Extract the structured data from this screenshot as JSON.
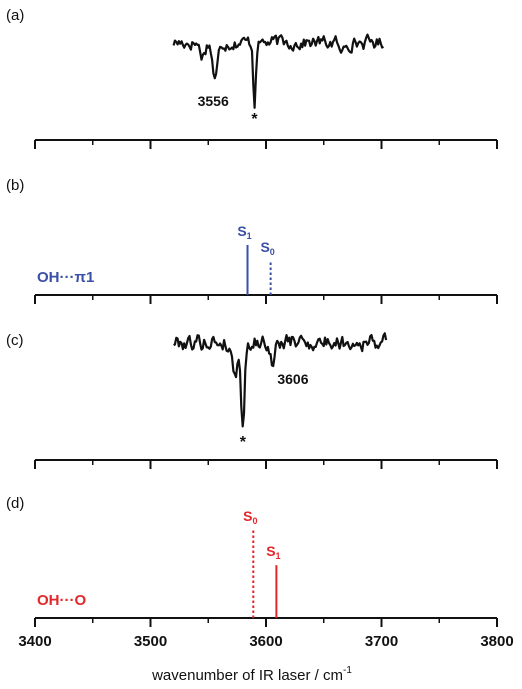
{
  "chart_data": {
    "type": "line",
    "xlabel": "wavenumber of IR laser / cm",
    "xlabel_superscript": "-1",
    "xlim": [
      3400,
      3800
    ],
    "xticks": [
      3400,
      3500,
      3600,
      3700,
      3800
    ],
    "xticks_minor": [
      3450,
      3550,
      3650,
      3750
    ],
    "colors": {
      "trace": "#111111",
      "blue": "#3a4fa6",
      "red": "#e3262a"
    },
    "panels": [
      {
        "label": "(a)",
        "kind": "spectrum",
        "x_range": [
          3520,
          3702
        ],
        "baseline_y": 0,
        "y_range": [
          -8,
          3
        ],
        "dips": [
          {
            "center": 3556,
            "depth": 4.5,
            "width": 3
          },
          {
            "center": 3590,
            "depth": 7.5,
            "width": 1.4
          },
          {
            "center": 3545,
            "depth": 1.6,
            "width": 3
          },
          {
            "center": 3665,
            "depth": 1.8,
            "width": 2
          }
        ],
        "annotations": [
          {
            "text": "3556",
            "x": 3556
          },
          {
            "text": "*",
            "x": 3590
          }
        ]
      },
      {
        "label": "(b)",
        "kind": "sticks",
        "assignment": "OH···π1",
        "color": "blue",
        "sticks": [
          {
            "name": "S",
            "sub": "1",
            "x": 3584,
            "height": 1.0,
            "style": "solid"
          },
          {
            "name": "S",
            "sub": "0",
            "x": 3604,
            "height": 0.68,
            "style": "dotted"
          }
        ]
      },
      {
        "label": "(c)",
        "kind": "spectrum",
        "x_range": [
          3520,
          3705
        ],
        "baseline_y": 0,
        "y_range": [
          -9,
          3
        ],
        "dips": [
          {
            "center": 3580,
            "depth": 8.5,
            "width": 2
          },
          {
            "center": 3573,
            "depth": 3.0,
            "width": 4
          },
          {
            "center": 3606,
            "depth": 2.6,
            "width": 2.5
          }
        ],
        "annotations": [
          {
            "text": "3606",
            "x": 3606
          },
          {
            "text": "*",
            "x": 3580
          }
        ]
      },
      {
        "label": "(d)",
        "kind": "sticks",
        "assignment": "OH···O",
        "color": "red",
        "sticks": [
          {
            "name": "S",
            "sub": "0",
            "x": 3589,
            "height": 1.0,
            "style": "dotted"
          },
          {
            "name": "S",
            "sub": "1",
            "x": 3609,
            "height": 0.6,
            "style": "solid"
          }
        ]
      }
    ]
  }
}
